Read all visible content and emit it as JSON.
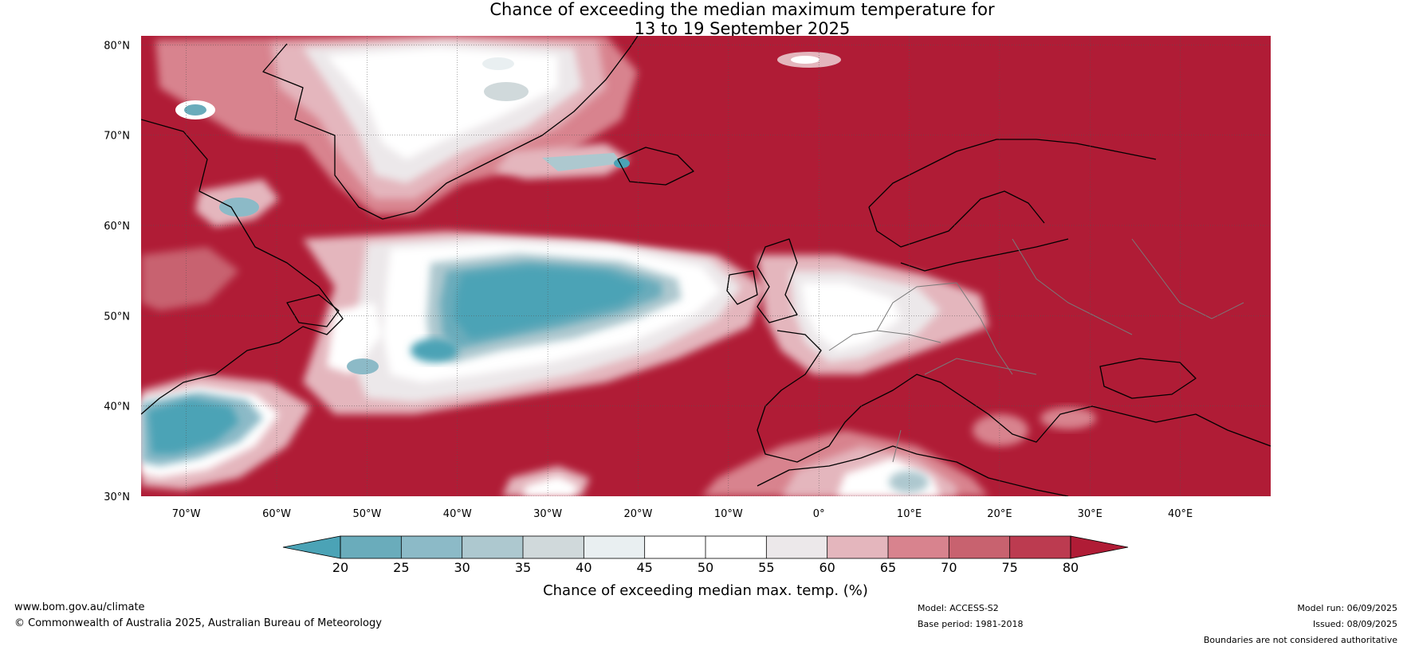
{
  "title": {
    "line1": "Chance of exceeding the median maximum temperature for",
    "line2": "13 to 19 September 2025"
  },
  "map": {
    "lon_range": [
      -75,
      50
    ],
    "lat_range": [
      30,
      81
    ],
    "lon_ticks": [
      {
        "value": -70,
        "label": "70°W"
      },
      {
        "value": -60,
        "label": "60°W"
      },
      {
        "value": -50,
        "label": "50°W"
      },
      {
        "value": -40,
        "label": "40°W"
      },
      {
        "value": -30,
        "label": "30°W"
      },
      {
        "value": -20,
        "label": "20°W"
      },
      {
        "value": -10,
        "label": "10°W"
      },
      {
        "value": 0,
        "label": "0°"
      },
      {
        "value": 10,
        "label": "10°E"
      },
      {
        "value": 20,
        "label": "20°E"
      },
      {
        "value": 30,
        "label": "30°E"
      },
      {
        "value": 40,
        "label": "40°E"
      }
    ],
    "lat_ticks": [
      {
        "value": 80,
        "label": "80°N"
      },
      {
        "value": 70,
        "label": "70°N"
      },
      {
        "value": 60,
        "label": "60°N"
      },
      {
        "value": 50,
        "label": "50°N"
      },
      {
        "value": 40,
        "label": "40°N"
      },
      {
        "value": 30,
        "label": "30°N"
      }
    ],
    "background_color": "#b01c36",
    "land_line_color": "#000000",
    "border_color": "#7a7a7a"
  },
  "colorbar": {
    "ticks": [
      "20",
      "25",
      "30",
      "35",
      "40",
      "45",
      "50",
      "55",
      "60",
      "65",
      "70",
      "75",
      "80"
    ],
    "colors": [
      "#4ba3b6",
      "#6aacbb",
      "#8cbac7",
      "#adc8cf",
      "#d0d9db",
      "#e9eff1",
      "#ffffff",
      "#ffffff",
      "#ece8ea",
      "#e4b6bd",
      "#d8838e",
      "#c8626f",
      "#bc3b50",
      "#b01c36"
    ],
    "label": "Chance of exceeding median max. temp. (%)"
  },
  "footer": {
    "website": "www.bom.gov.au/climate",
    "copyright": "© Commonwealth of Australia 2025, Australian Bureau of Meteorology",
    "model": "Model: ACCESS-S2",
    "base_period": "Base period: 1981-2018",
    "model_run": "Model run: 06/09/2025",
    "issued": "Issued: 08/09/2025",
    "disclaimer": "Boundaries are not considered authoritative"
  }
}
